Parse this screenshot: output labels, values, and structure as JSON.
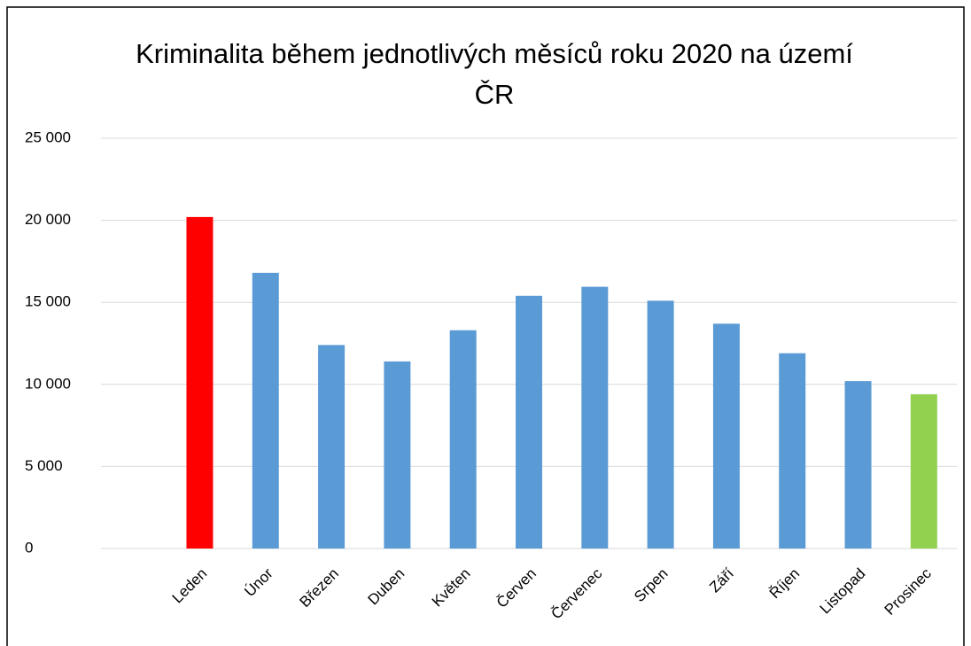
{
  "chart_data": {
    "type": "bar",
    "title": "Kriminalita během jednotlivých měsíců roku 2020 na území ČR",
    "categories": [
      null,
      "Leden",
      "Únor",
      "Březen",
      "Duben",
      "Květen",
      "Červen",
      "Červenec",
      "Srpen",
      "Září",
      "Říjen",
      "Listopad",
      "Prosinec"
    ],
    "values": [
      null,
      20200,
      16800,
      12400,
      11400,
      13300,
      15400,
      15950,
      15100,
      13700,
      11900,
      10200,
      9400
    ],
    "colors": [
      null,
      "#ff0000",
      "#5b9bd5",
      "#5b9bd5",
      "#5b9bd5",
      "#5b9bd5",
      "#5b9bd5",
      "#5b9bd5",
      "#5b9bd5",
      "#5b9bd5",
      "#5b9bd5",
      "#5b9bd5",
      "#92d050"
    ],
    "ylim": [
      0,
      25000
    ],
    "yticks": [
      0,
      {
        "value": 5000,
        "label": "5 000"
      },
      {
        "value": 10000,
        "label": "10 000"
      },
      {
        "value": 15000,
        "label": "15 000"
      },
      {
        "value": 20000,
        "label": "20 000"
      },
      {
        "value": 25000,
        "label": "25 000"
      }
    ],
    "grid": true
  }
}
